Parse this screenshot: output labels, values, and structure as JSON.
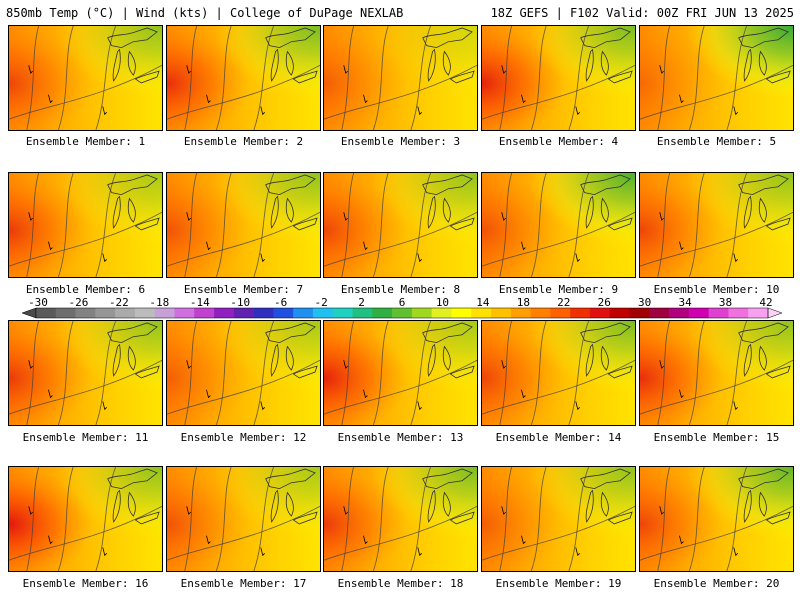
{
  "header": {
    "left": "850mb Temp (°C) | Wind (kts) | College of DuPage NEXLAB",
    "right": "18Z GEFS | F102 Valid: 00Z FRI JUN 13 2025"
  },
  "members": [
    {
      "label": "Ensemble Member: 1",
      "hot": 0.6,
      "cool": 0.5
    },
    {
      "label": "Ensemble Member: 2",
      "hot": 0.8,
      "cool": 0.6
    },
    {
      "label": "Ensemble Member: 3",
      "hot": 0.4,
      "cool": 0.2
    },
    {
      "label": "Ensemble Member: 4",
      "hot": 0.9,
      "cool": 0.6
    },
    {
      "label": "Ensemble Member: 5",
      "hot": 0.3,
      "cool": 0.9
    },
    {
      "label": "Ensemble Member: 6",
      "hot": 0.7,
      "cool": 0.4
    },
    {
      "label": "Ensemble Member: 7",
      "hot": 0.5,
      "cool": 0.5
    },
    {
      "label": "Ensemble Member: 8",
      "hot": 0.6,
      "cool": 0.5
    },
    {
      "label": "Ensemble Member: 9",
      "hot": 0.5,
      "cool": 0.8
    },
    {
      "label": "Ensemble Member: 10",
      "hot": 0.6,
      "cool": 0.5
    },
    {
      "label": "Ensemble Member: 11",
      "hot": 0.7,
      "cool": 0.5
    },
    {
      "label": "Ensemble Member: 12",
      "hot": 0.4,
      "cool": 0.4
    },
    {
      "label": "Ensemble Member: 13",
      "hot": 0.9,
      "cool": 0.4
    },
    {
      "label": "Ensemble Member: 14",
      "hot": 0.6,
      "cool": 0.6
    },
    {
      "label": "Ensemble Member: 15",
      "hot": 0.8,
      "cool": 0.5
    },
    {
      "label": "Ensemble Member: 16",
      "hot": 1.0,
      "cool": 0.5
    },
    {
      "label": "Ensemble Member: 17",
      "hot": 0.5,
      "cool": 0.4
    },
    {
      "label": "Ensemble Member: 18",
      "hot": 0.7,
      "cool": 0.6
    },
    {
      "label": "Ensemble Member: 19",
      "hot": 0.4,
      "cool": 0.5
    },
    {
      "label": "Ensemble Member: 20",
      "hot": 0.6,
      "cool": 0.7
    }
  ],
  "colorbar": {
    "labels": [
      "-30",
      "-26",
      "-22",
      "-18",
      "-14",
      "-10",
      "-6",
      "-2",
      "2",
      "6",
      "10",
      "14",
      "18",
      "22",
      "26",
      "30",
      "34",
      "38",
      "42"
    ],
    "colors": [
      "#5a5a5a",
      "#6e6e6e",
      "#828282",
      "#969696",
      "#aaaaaa",
      "#bcbcbc",
      "#c8a0d8",
      "#d070e0",
      "#c040d0",
      "#9020c0",
      "#6020b0",
      "#3030c0",
      "#2050e0",
      "#2090f0",
      "#20c0f0",
      "#20d0c0",
      "#20c080",
      "#30b040",
      "#60c030",
      "#a0d820",
      "#e0f020",
      "#ffff00",
      "#ffe000",
      "#ffc000",
      "#ffa000",
      "#ff8000",
      "#ff6000",
      "#f03000",
      "#e01010",
      "#c00000",
      "#a00000",
      "#a00040",
      "#b00080",
      "#d000b0",
      "#e040d0",
      "#f070e0",
      "#f8a0f0"
    ]
  }
}
